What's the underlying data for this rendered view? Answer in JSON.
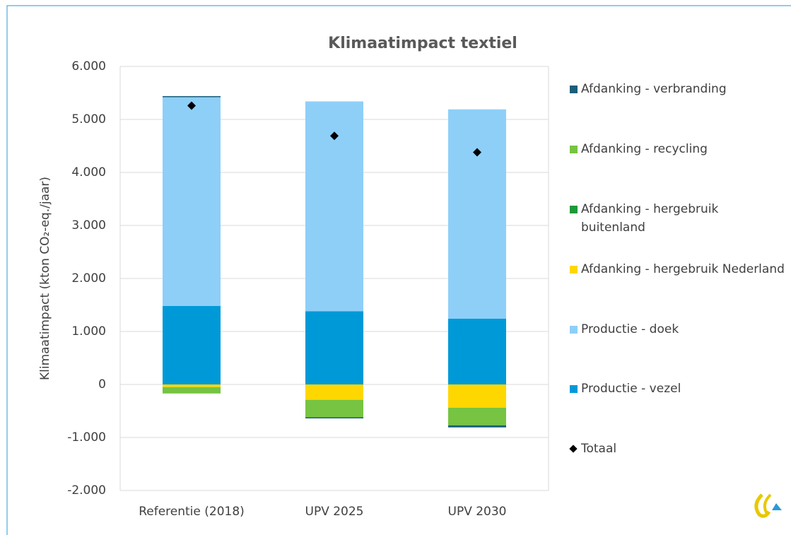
{
  "chart_data": {
    "type": "stacked_bar",
    "title": "Klimaatimpact textiel",
    "y_label": "Klimaatimpact (kton CO₂-eq./jaar)",
    "categories": [
      "Referentie (2018)",
      "UPV 2025",
      "UPV 2030"
    ],
    "series": [
      {
        "name": "Productie - vezel",
        "color": "#0099d8",
        "values": [
          1480,
          1380,
          1240
        ]
      },
      {
        "name": "Productie - doek",
        "color": "#8ecff8",
        "values": [
          3940,
          3960,
          3950
        ]
      },
      {
        "name": "Afdanking - hergebruik Nederland",
        "color": "#ffd700",
        "values": [
          -50,
          -290,
          -440
        ]
      },
      {
        "name": "Afdanking - hergebruik buitenland",
        "color": "#1a9a3a",
        "values": [
          0,
          0,
          0
        ]
      },
      {
        "name": "Afdanking - recycling",
        "color": "#76c442",
        "values": [
          -120,
          -330,
          -330
        ]
      },
      {
        "name": "Afdanking - verbranding",
        "color": "#1a5e7a",
        "values": [
          20,
          -20,
          -40
        ]
      }
    ],
    "markers": {
      "name": "Totaal",
      "color": "#000000",
      "values": [
        5260,
        4690,
        4380
      ]
    },
    "ylim": [
      -2000,
      6000
    ],
    "yticks": [
      {
        "value": -2000,
        "label": "-2.000"
      },
      {
        "value": -1000,
        "label": "-1.000"
      },
      0,
      {
        "value": 1000,
        "label": "1.000"
      },
      {
        "value": 2000,
        "label": "2.000"
      },
      {
        "value": 3000,
        "label": "3.000"
      },
      {
        "value": 4000,
        "label": "4.000"
      },
      {
        "value": 5000,
        "label": "5.000"
      },
      {
        "value": 6000,
        "label": "6.000"
      }
    ],
    "grid": true,
    "legend": "right"
  }
}
